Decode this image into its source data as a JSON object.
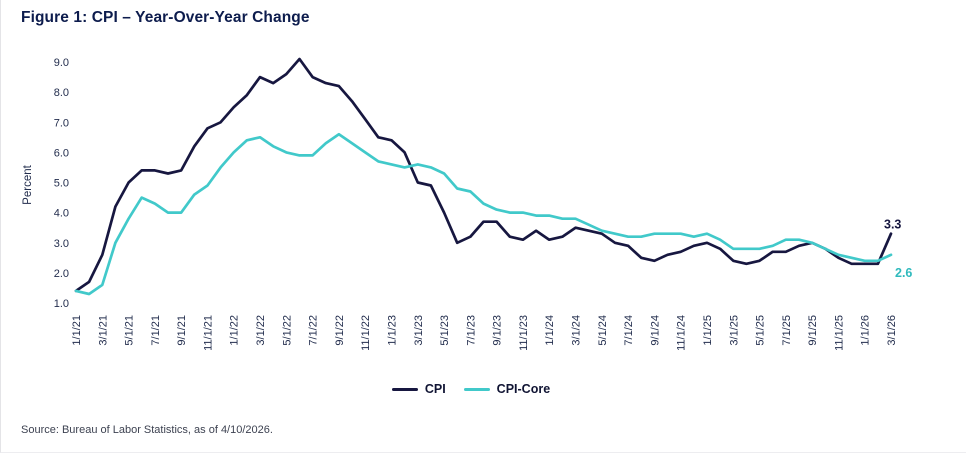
{
  "title": "Figure 1: CPI – Year-Over-Year Change",
  "source": "Source: Bureau of Labor Statistics, as of 4/10/2026.",
  "colors": {
    "title_text": "#0d1c4d",
    "axis_text": "#222d4d",
    "source_text": "#3d4251",
    "cpi_line": "#171740",
    "cpi_core_line": "#41c9ca"
  },
  "chart_data": {
    "type": "line",
    "title": "Figure 1: CPI – Year-Over-Year Change",
    "xlabel": "",
    "ylabel": "Percent",
    "ylim": [
      1.0,
      9.0
    ],
    "ytick_labels": [
      "1.0",
      "2.0",
      "3.0",
      "4.0",
      "5.0",
      "6.0",
      "7.0",
      "8.0",
      "9.0"
    ],
    "xtick_every": 2,
    "grid": false,
    "legend_position": "bottom",
    "x": [
      "1/1/21",
      "2/1/21",
      "3/1/21",
      "4/1/21",
      "5/1/21",
      "6/1/21",
      "7/1/21",
      "8/1/21",
      "9/1/21",
      "10/1/21",
      "11/1/21",
      "12/1/21",
      "1/1/22",
      "2/1/22",
      "3/1/22",
      "4/1/22",
      "5/1/22",
      "6/1/22",
      "7/1/22",
      "8/1/22",
      "9/1/22",
      "10/1/22",
      "11/1/22",
      "12/1/22",
      "1/1/23",
      "2/1/23",
      "3/1/23",
      "4/1/23",
      "5/1/23",
      "6/1/23",
      "7/1/23",
      "8/1/23",
      "9/1/23",
      "10/1/23",
      "11/1/23",
      "12/1/23",
      "1/1/24",
      "2/1/24",
      "3/1/24",
      "4/1/24",
      "5/1/24",
      "6/1/24",
      "7/1/24",
      "8/1/24",
      "9/1/24",
      "10/1/24",
      "11/1/24",
      "12/1/24",
      "1/1/25",
      "2/1/25",
      "3/1/25",
      "4/1/25",
      "5/1/25",
      "6/1/25",
      "7/1/25",
      "8/1/25",
      "9/1/25",
      "10/1/25",
      "11/1/25",
      "12/1/25",
      "1/1/26",
      "2/1/26",
      "3/1/26"
    ],
    "series": [
      {
        "name": "CPI",
        "color": "#171740",
        "end_label": "3.3",
        "values": [
          1.4,
          1.7,
          2.6,
          4.2,
          5.0,
          5.4,
          5.4,
          5.3,
          5.4,
          6.2,
          6.8,
          7.0,
          7.5,
          7.9,
          8.5,
          8.3,
          8.6,
          9.1,
          8.5,
          8.3,
          8.2,
          7.7,
          7.1,
          6.5,
          6.4,
          6.0,
          5.0,
          4.9,
          4.0,
          3.0,
          3.2,
          3.7,
          3.7,
          3.2,
          3.1,
          3.4,
          3.1,
          3.2,
          3.5,
          3.4,
          3.3,
          3.0,
          2.9,
          2.5,
          2.4,
          2.6,
          2.7,
          2.9,
          3.0,
          2.8,
          2.4,
          2.3,
          2.4,
          2.7,
          2.7,
          2.9,
          3.0,
          2.8,
          2.5,
          2.3,
          2.3,
          2.3,
          3.3
        ]
      },
      {
        "name": "CPI-Core",
        "color": "#41c9ca",
        "end_label": "2.6",
        "values": [
          1.4,
          1.3,
          1.6,
          3.0,
          3.8,
          4.5,
          4.3,
          4.0,
          4.0,
          4.6,
          4.9,
          5.5,
          6.0,
          6.4,
          6.5,
          6.2,
          6.0,
          5.9,
          5.9,
          6.3,
          6.6,
          6.3,
          6.0,
          5.7,
          5.6,
          5.5,
          5.6,
          5.5,
          5.3,
          4.8,
          4.7,
          4.3,
          4.1,
          4.0,
          4.0,
          3.9,
          3.9,
          3.8,
          3.8,
          3.6,
          3.4,
          3.3,
          3.2,
          3.2,
          3.3,
          3.3,
          3.3,
          3.2,
          3.3,
          3.1,
          2.8,
          2.8,
          2.8,
          2.9,
          3.1,
          3.1,
          3.0,
          2.8,
          2.6,
          2.5,
          2.4,
          2.4,
          2.6
        ]
      }
    ]
  }
}
